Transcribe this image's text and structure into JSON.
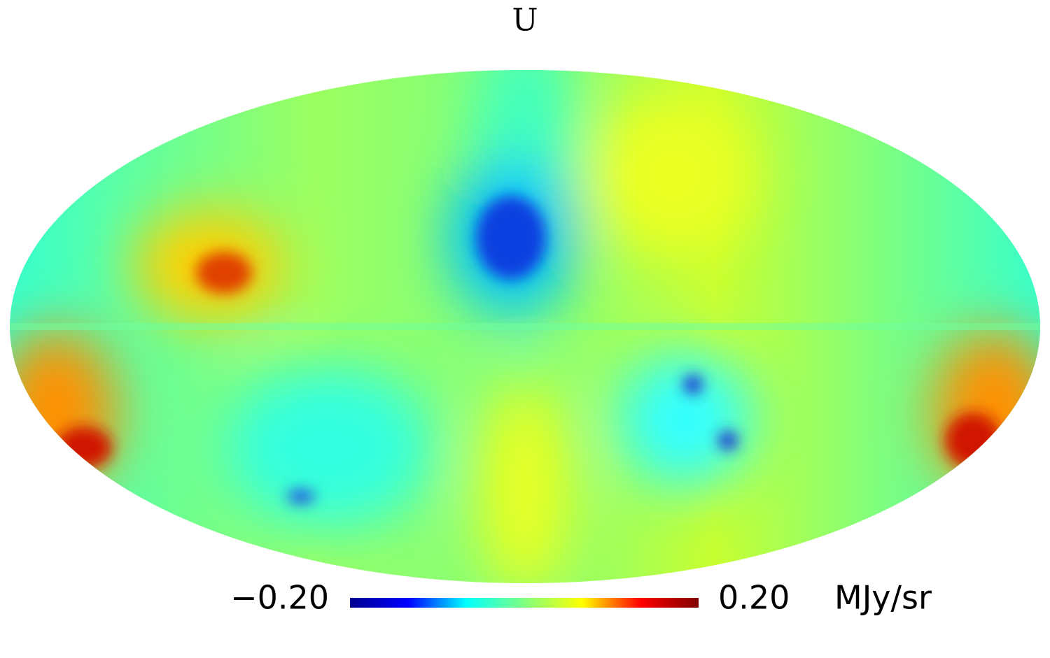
{
  "title": "U",
  "colorbar": {
    "ticks": [
      {
        "value": -0.2,
        "label": "−0.20"
      },
      {
        "value": 0.2,
        "label": "0.20"
      }
    ],
    "unit": "MJy/sr",
    "colors": [
      "#00008f",
      "#0000ff",
      "#00ffff",
      "#80ff80",
      "#ffff00",
      "#ff0000",
      "#800000"
    ]
  }
}
